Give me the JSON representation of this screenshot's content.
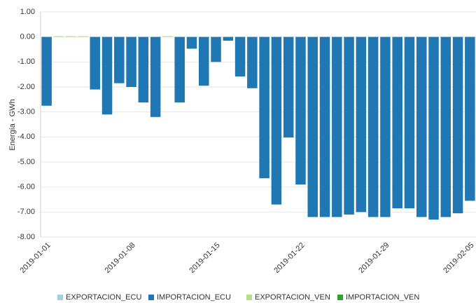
{
  "chart_data": {
    "type": "bar",
    "y_label": "Energía - GWh",
    "categories": [
      "2019-01-01",
      null,
      null,
      null,
      null,
      null,
      null,
      "2019-01-08",
      null,
      null,
      null,
      null,
      null,
      null,
      "2019-01-15",
      null,
      null,
      null,
      null,
      null,
      null,
      "2019-01-22",
      null,
      null,
      null,
      null,
      null,
      null,
      "2019-01-29",
      null,
      null,
      null,
      null,
      null,
      null,
      "2019-02-05"
    ],
    "series": [
      {
        "name": "EXPORTACION_ECU",
        "color": "#a6cee3",
        "values": [
          null,
          null,
          null,
          null,
          null,
          null,
          null,
          null,
          null,
          null,
          null,
          null,
          null,
          null,
          null,
          null,
          null,
          null,
          null,
          null,
          null,
          null,
          null,
          null,
          null,
          null,
          null,
          null,
          null,
          null,
          null,
          null,
          null,
          null,
          null,
          null
        ]
      },
      {
        "name": "IMPORTACION_ECU",
        "color": "#1f78b4",
        "values": [
          -2.75,
          null,
          null,
          null,
          -2.1,
          -3.1,
          -1.85,
          -2.0,
          -2.62,
          -3.2,
          null,
          -2.62,
          -0.47,
          -1.95,
          -1.0,
          -0.15,
          -1.58,
          -2.05,
          -5.65,
          -6.7,
          -4.02,
          -5.9,
          -7.2,
          -7.2,
          -7.2,
          -7.1,
          -7.0,
          -7.2,
          -7.2,
          -6.85,
          -6.85,
          -7.2,
          -7.3,
          -7.2,
          -7.05,
          -6.55
        ]
      },
      {
        "name": "EXPORTACION_VEN",
        "color": "#b2df8a",
        "values": [
          null,
          0.03,
          0.03,
          0.03,
          null,
          null,
          null,
          null,
          null,
          null,
          0.03,
          null,
          null,
          null,
          null,
          null,
          null,
          null,
          null,
          null,
          null,
          null,
          null,
          null,
          null,
          null,
          null,
          null,
          null,
          null,
          null,
          null,
          null,
          null,
          null,
          null
        ]
      },
      {
        "name": "IMPORTACION_VEN",
        "color": "#33a02c",
        "values": [
          null,
          null,
          null,
          null,
          null,
          null,
          null,
          null,
          null,
          null,
          null,
          null,
          null,
          null,
          null,
          null,
          null,
          null,
          null,
          null,
          null,
          null,
          null,
          null,
          null,
          null,
          null,
          null,
          null,
          null,
          null,
          null,
          null,
          null,
          null,
          null
        ]
      }
    ],
    "ylim": [
      -8,
      1
    ],
    "yticks": [
      {
        "value": 1,
        "label": "1.00"
      },
      {
        "value": 0,
        "label": "0.00"
      },
      {
        "value": -1,
        "label": "-1.00"
      },
      {
        "value": -2,
        "label": "-2.00"
      },
      {
        "value": -3,
        "label": "-3.00"
      },
      {
        "value": -4,
        "label": "-4.00"
      },
      {
        "value": -5,
        "label": "-5.00"
      },
      {
        "value": -6,
        "label": "-6.00"
      },
      {
        "value": -7,
        "label": "-7.00"
      },
      {
        "value": -8,
        "label": "-8.00"
      }
    ],
    "grid": true,
    "legend": "bottom"
  }
}
